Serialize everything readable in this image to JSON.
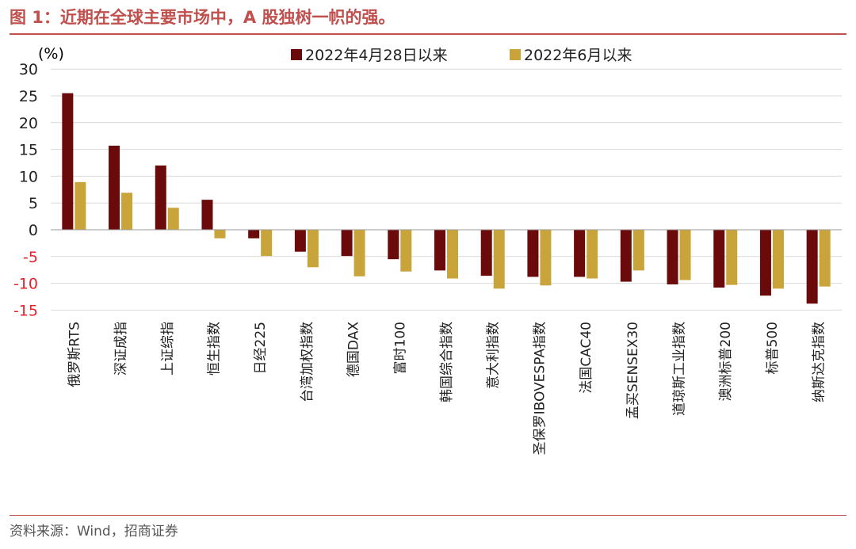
{
  "figure": {
    "title": "图 1：近期在全球主要市场中，A 股独树一帜的强。",
    "source": "资料来源：Wind，招商证券"
  },
  "colors": {
    "accent": "#c0504d",
    "series1": "#6b0a0a",
    "series2": "#c9a43b",
    "negative_tick": "#e8202a"
  },
  "chart_data": {
    "type": "bar",
    "ylabel": "(%)",
    "ylim": [
      -15,
      30
    ],
    "yticks": [
      30,
      25,
      20,
      15,
      10,
      5,
      0,
      -5,
      -10,
      -15
    ],
    "categories": [
      "俄罗斯RTS",
      "深证成指",
      "上证综指",
      "恒生指数",
      "日经225",
      "台湾加权指数",
      "德国DAX",
      "富时100",
      "韩国综合指数",
      "意大利指数",
      "圣保罗IBOVESPA指数",
      "法国CAC40",
      "孟买SENSEX30",
      "道琼斯工业指数",
      "澳洲标普200",
      "标普500",
      "纳斯达克指数"
    ],
    "series": [
      {
        "name": "2022年4月28日以来",
        "values": [
          25.5,
          15.7,
          12.0,
          5.6,
          -1.6,
          -4.1,
          -4.9,
          -5.5,
          -7.6,
          -8.6,
          -8.8,
          -8.8,
          -9.7,
          -10.2,
          -10.8,
          -12.3,
          -13.8
        ]
      },
      {
        "name": "2022年6月以来",
        "values": [
          8.9,
          6.9,
          4.1,
          -1.6,
          -4.9,
          -7.0,
          -8.7,
          -7.8,
          -9.1,
          -11.0,
          -10.4,
          -9.1,
          -7.6,
          -9.4,
          -10.3,
          -11.0,
          -10.6
        ]
      }
    ]
  }
}
